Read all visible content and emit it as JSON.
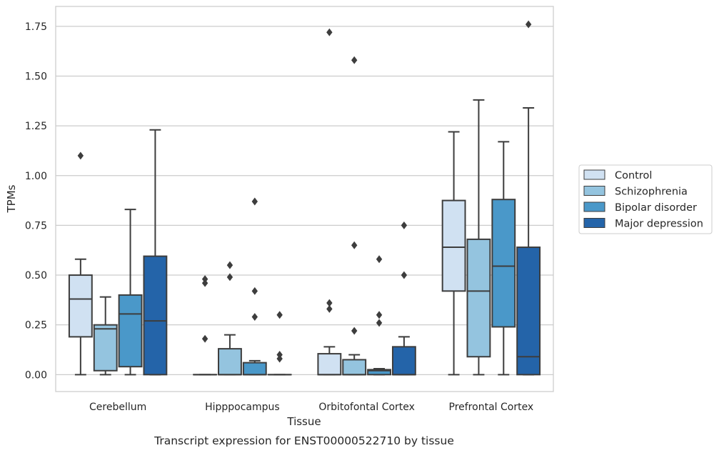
{
  "chart_data": {
    "type": "box",
    "xlabel": "Tissue",
    "ylabel": "TPMs",
    "caption": "Transcript expression for ENST00000522710 by tissue",
    "ylim": [
      -0.085,
      1.85
    ],
    "yticks": [
      "0.00",
      "0.25",
      "0.50",
      "0.75",
      "1.00",
      "1.25",
      "1.50",
      "1.75"
    ],
    "grid": "horizontal",
    "legend_position": "right",
    "categories": [
      "Cerebellum",
      "Hipppocampus",
      "Orbitofontal Cortex",
      "Prefrontal Cortex"
    ],
    "series": [
      {
        "name": "Control",
        "color": "#d0e1f2",
        "boxes": [
          {
            "whislo": 0.0,
            "q1": 0.19,
            "med": 0.38,
            "q3": 0.5,
            "whishi": 0.58,
            "fliers": [
              1.1
            ]
          },
          {
            "whislo": 0.0,
            "q1": 0.0,
            "med": 0.0,
            "q3": 0.0,
            "whishi": 0.0,
            "fliers": [
              0.48,
              0.46,
              0.18
            ]
          },
          {
            "whislo": 0.0,
            "q1": 0.0,
            "med": 0.0,
            "q3": 0.105,
            "whishi": 0.14,
            "fliers": [
              1.72,
              0.36,
              0.33
            ]
          },
          {
            "whislo": 0.0,
            "q1": 0.42,
            "med": 0.64,
            "q3": 0.875,
            "whishi": 1.22,
            "fliers": []
          }
        ]
      },
      {
        "name": "Schizophrenia",
        "color": "#94c4df",
        "boxes": [
          {
            "whislo": 0.0,
            "q1": 0.02,
            "med": 0.23,
            "q3": 0.25,
            "whishi": 0.39,
            "fliers": []
          },
          {
            "whislo": 0.0,
            "q1": 0.0,
            "med": 0.0,
            "q3": 0.13,
            "whishi": 0.2,
            "fliers": [
              0.55,
              0.49
            ]
          },
          {
            "whislo": 0.0,
            "q1": 0.0,
            "med": 0.0,
            "q3": 0.075,
            "whishi": 0.1,
            "fliers": [
              1.58,
              0.65,
              0.22
            ]
          },
          {
            "whislo": 0.0,
            "q1": 0.09,
            "med": 0.42,
            "q3": 0.68,
            "whishi": 1.38,
            "fliers": []
          }
        ]
      },
      {
        "name": "Bipolar disorder",
        "color": "#4a98c9",
        "boxes": [
          {
            "whislo": 0.0,
            "q1": 0.04,
            "med": 0.305,
            "q3": 0.4,
            "whishi": 0.83,
            "fliers": []
          },
          {
            "whislo": 0.0,
            "q1": 0.0,
            "med": 0.0,
            "q3": 0.06,
            "whishi": 0.07,
            "fliers": [
              0.87,
              0.42,
              0.29
            ]
          },
          {
            "whislo": 0.0,
            "q1": 0.0,
            "med": 0.02,
            "q3": 0.025,
            "whishi": 0.03,
            "fliers": [
              0.58,
              0.3,
              0.26
            ]
          },
          {
            "whislo": 0.0,
            "q1": 0.24,
            "med": 0.545,
            "q3": 0.88,
            "whishi": 1.17,
            "fliers": []
          }
        ]
      },
      {
        "name": "Major depression",
        "color": "#2464a9",
        "boxes": [
          {
            "whislo": 0.0,
            "q1": 0.0,
            "med": 0.27,
            "q3": 0.595,
            "whishi": 1.23,
            "fliers": []
          },
          {
            "whislo": 0.0,
            "q1": 0.0,
            "med": 0.0,
            "q3": 0.0,
            "whishi": 0.0,
            "fliers": [
              0.3,
              0.1,
              0.08
            ]
          },
          {
            "whislo": 0.0,
            "q1": 0.0,
            "med": 0.0,
            "q3": 0.14,
            "whishi": 0.19,
            "fliers": [
              0.75,
              0.5
            ]
          },
          {
            "whislo": 0.0,
            "q1": 0.0,
            "med": 0.09,
            "q3": 0.64,
            "whishi": 1.34,
            "fliers": [
              1.76
            ]
          }
        ]
      }
    ]
  }
}
